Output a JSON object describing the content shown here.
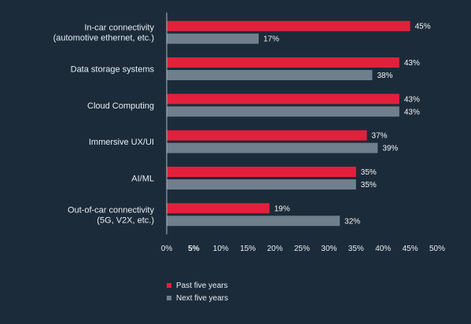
{
  "chart_data": {
    "type": "bar",
    "orientation": "horizontal",
    "categories": [
      [
        "In-car connectivity",
        "(automotive ethernet, etc.)"
      ],
      [
        "Data storage systems"
      ],
      [
        "Cloud Computing"
      ],
      [
        "Immersive UX/UI"
      ],
      [
        "AI/ML"
      ],
      [
        "Out-of-car connectivity",
        "(5G, V2X, etc.)"
      ]
    ],
    "series": [
      {
        "name": "Past five years",
        "values": [
          45,
          43,
          43,
          37,
          35,
          19
        ],
        "labels": [
          "45%",
          "43%",
          "43%",
          "37%",
          "35%",
          "19%"
        ]
      },
      {
        "name": "Next five years",
        "values": [
          17,
          38,
          43,
          39,
          35,
          32
        ],
        "labels": [
          "17%",
          "38%",
          "43%",
          "39%",
          "35%",
          "32%"
        ]
      }
    ],
    "x_ticks": [
      "0%",
      "5%",
      "10%",
      "15%",
      "20%",
      "25%",
      "30%",
      "35%",
      "40%",
      "45%",
      "50%"
    ],
    "xlim": [
      0,
      50
    ],
    "xlabel": "",
    "ylabel": "",
    "legend_position": "bottom",
    "colors": {
      "background": "#1c2b39",
      "past": "#e3203b",
      "next": "#6f7f8c",
      "axis": "#aeb8c2"
    }
  }
}
